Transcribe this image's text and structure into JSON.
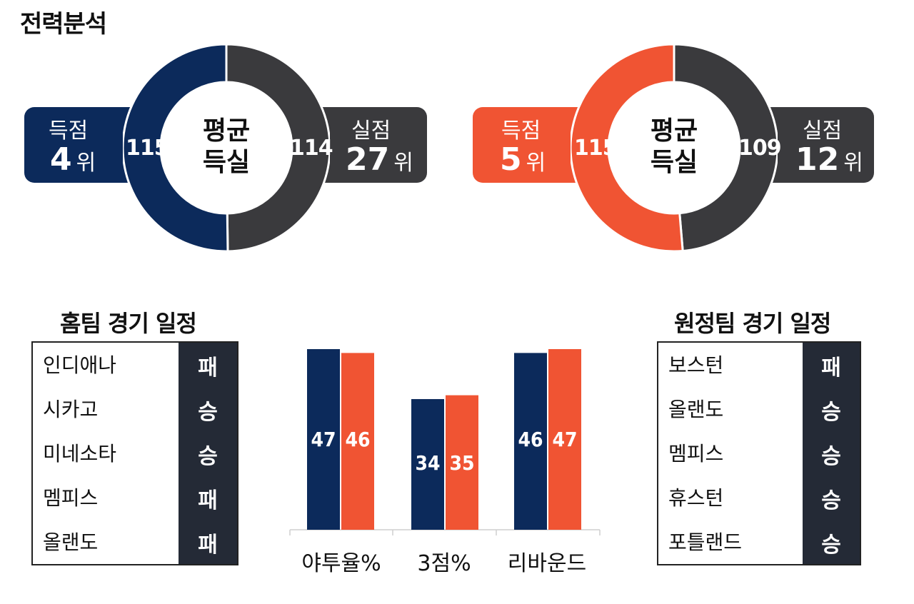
{
  "title": "전력분석",
  "colors": {
    "navy": "#0c2a5b",
    "orange": "#f05433",
    "dark": "#3a3a3d",
    "sched_dark": "#242a36"
  },
  "donuts": [
    {
      "center_line1": "평균",
      "center_line2": "득실",
      "scored": {
        "label": "득점",
        "value": "115",
        "rank": "4",
        "unit": "위"
      },
      "allowed": {
        "label": "실점",
        "value": "114",
        "rank": "27",
        "unit": "위"
      }
    },
    {
      "center_line1": "평균",
      "center_line2": "득실",
      "scored": {
        "label": "득점",
        "value": "115",
        "rank": "5",
        "unit": "위"
      },
      "allowed": {
        "label": "실점",
        "value": "109",
        "rank": "12",
        "unit": "위"
      }
    }
  ],
  "home_schedule": {
    "title": "홈팀 경기 일정",
    "games": [
      {
        "team": "인디애나",
        "result": "패"
      },
      {
        "team": "시카고",
        "result": "승"
      },
      {
        "team": "미네소타",
        "result": "승"
      },
      {
        "team": "멤피스",
        "result": "패"
      },
      {
        "team": "올랜도",
        "result": "패"
      }
    ]
  },
  "away_schedule": {
    "title": "원정팀 경기 일정",
    "games": [
      {
        "team": "보스턴",
        "result": "패"
      },
      {
        "team": "올랜도",
        "result": "승"
      },
      {
        "team": "멤피스",
        "result": "승"
      },
      {
        "team": "휴스턴",
        "result": "승"
      },
      {
        "team": "포틀랜드",
        "result": "승"
      }
    ]
  },
  "chart_data": [
    {
      "type": "pie",
      "slices": [
        {
          "label": "득점",
          "value": 115,
          "color": "#0c2a5b"
        },
        {
          "label": "실점",
          "value": 114,
          "color": "#3a3a3d"
        }
      ]
    },
    {
      "type": "pie",
      "slices": [
        {
          "label": "득점",
          "value": 115,
          "color": "#f05433"
        },
        {
          "label": "실점",
          "value": 109,
          "color": "#3a3a3d"
        }
      ]
    },
    {
      "type": "bar",
      "categories": [
        "야투율%",
        "3점%",
        "리바운드"
      ],
      "series": [
        {
          "values": [
            47,
            34,
            46
          ],
          "color": "#0c2a5b"
        },
        {
          "values": [
            46,
            35,
            47
          ],
          "color": "#f05433"
        }
      ],
      "ylim": [
        0,
        47
      ]
    }
  ]
}
